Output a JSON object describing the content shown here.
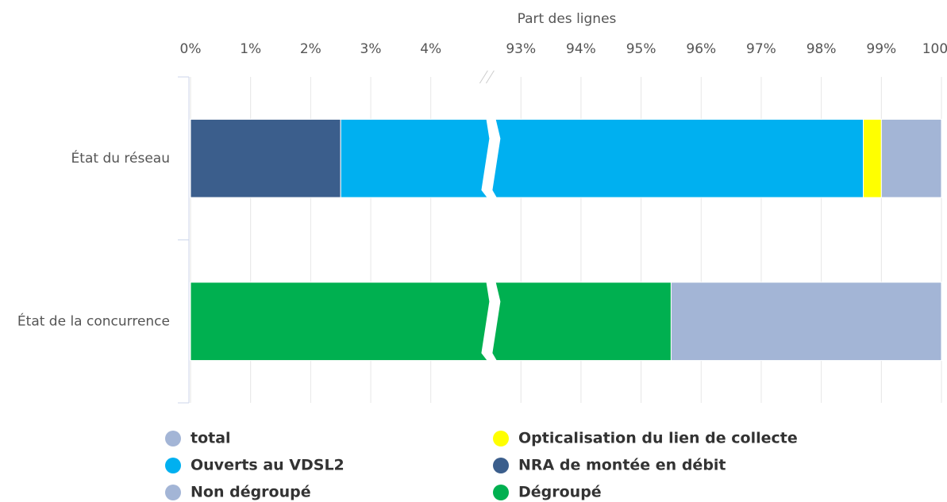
{
  "chart_data": {
    "type": "stacked-bar-horizontal",
    "x_axis_title": "Part des lignes",
    "categories": [
      "État du réseau",
      "État de la concurrence"
    ],
    "series": [
      {
        "name": "total",
        "color": "#a3b5d6",
        "values": [
          1.0,
          null
        ]
      },
      {
        "name": "Opticalisation du lien de collecte",
        "color": "#ffff00",
        "values": [
          0.3,
          null
        ]
      },
      {
        "name": "Ouverts au VDSL2",
        "color": "#00b0f0",
        "values": [
          96.2,
          null
        ]
      },
      {
        "name": "NRA de montée en débit",
        "color": "#3b5e8c",
        "values": [
          2.5,
          null
        ]
      },
      {
        "name": "Non dégroupé",
        "color": "#a3b5d6",
        "values": [
          null,
          4.5
        ]
      },
      {
        "name": "Dégroupé",
        "color": "#00b050",
        "values": [
          null,
          95.5
        ]
      }
    ],
    "xlim": [
      0,
      100
    ],
    "axis_break": [
      5,
      92.5
    ],
    "xticks": [
      {
        "value": 0,
        "label": "0%"
      },
      {
        "value": 1,
        "label": "1%"
      },
      {
        "value": 2,
        "label": "2%"
      },
      {
        "value": 3,
        "label": "3%"
      },
      {
        "value": 4,
        "label": "4%"
      },
      {
        "value": 93,
        "label": "93%"
      },
      {
        "value": 94,
        "label": "94%"
      },
      {
        "value": 95,
        "label": "95%"
      },
      {
        "value": 96,
        "label": "96%"
      },
      {
        "value": 97,
        "label": "97%"
      },
      {
        "value": 98,
        "label": "98%"
      },
      {
        "value": 99,
        "label": "99%"
      },
      {
        "value": 100,
        "label": "100%"
      }
    ],
    "grid": true,
    "legend": "bottom"
  }
}
